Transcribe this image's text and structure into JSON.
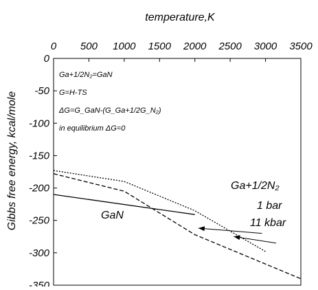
{
  "chart_data": {
    "type": "line",
    "title": "",
    "xlabel": "temperature,K",
    "ylabel": "Gibbs free energy, kcal/mole",
    "xlim": [
      0,
      3500
    ],
    "ylim": [
      -350,
      0
    ],
    "x_ticks": [
      "0",
      "500",
      "1000",
      "1500",
      "2000",
      "2500",
      "3000",
      "3500"
    ],
    "y_ticks": [
      "0",
      "-50",
      "-100",
      "-150",
      "-200",
      "-250",
      "-300",
      "-350"
    ],
    "x_tick_values": [
      0,
      500,
      1000,
      1500,
      2000,
      2500,
      3000,
      3500
    ],
    "y_tick_values": [
      0,
      -50,
      -100,
      -150,
      -200,
      -250,
      -300,
      -350
    ],
    "grid": false,
    "annotation_lines": [
      "Ga+1/2N₂=GaN",
      "G=H-TS",
      "ΔG=G_GaN-(G_Ga+1/2G_N₂)",
      "in equilibrium ΔG=0"
    ],
    "labels": {
      "gan": "GaN",
      "ga_n2": "Ga+1/2N₂",
      "bar_1": "1 bar",
      "kbar_11": "11 kbar"
    },
    "series": [
      {
        "name": "GaN",
        "style": "solid",
        "points": [
          [
            0,
            -210
          ],
          [
            2000,
            -241
          ]
        ]
      },
      {
        "name": "1 bar",
        "style": "dashed",
        "points": [
          [
            0,
            -178
          ],
          [
            1000,
            -205
          ],
          [
            2000,
            -272
          ],
          [
            3500,
            -340
          ]
        ]
      },
      {
        "name": "11 kbar",
        "style": "dotted",
        "points": [
          [
            0,
            -173
          ],
          [
            1000,
            -190
          ],
          [
            2000,
            -235
          ],
          [
            3000,
            -298
          ]
        ]
      }
    ],
    "arrows": [
      {
        "name": "1 bar",
        "from": [
          2950,
          -270
        ],
        "to": [
          2050,
          -262
        ]
      },
      {
        "name": "11 kbar",
        "from": [
          3150,
          -285
        ],
        "to": [
          2550,
          -275
        ]
      }
    ]
  }
}
